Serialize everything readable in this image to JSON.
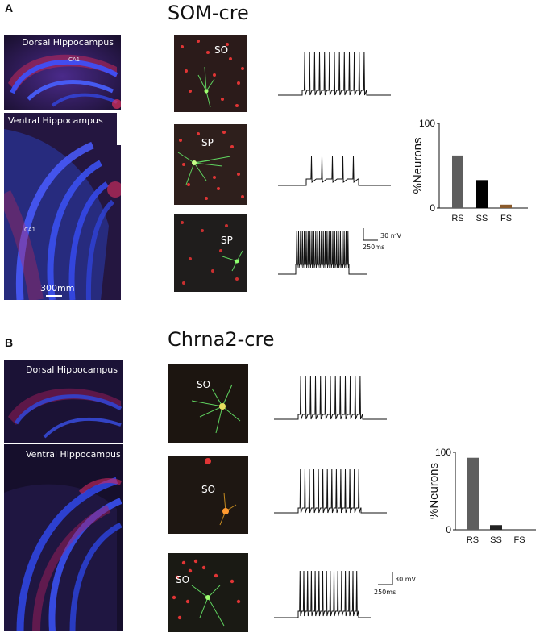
{
  "panel_a": {
    "letter": "A",
    "title": "SOM-cre",
    "dorsal_label": "Dorsal Hippocampus",
    "ca1_label_dorsal": "CA1",
    "ventral_label": "Ventral Hippocampus",
    "ca1_label_ventral": "CA1",
    "scale_label": "300mm",
    "cell_labels": [
      "SO",
      "SP",
      "SP"
    ],
    "scale_voltage": "30 mV",
    "scale_time": "250ms"
  },
  "panel_b": {
    "letter": "B",
    "title": "Chrna2-cre",
    "dorsal_label": "Dorsal Hippocampus",
    "ventral_label": "Ventral Hippocampus",
    "cell_labels": [
      "SO",
      "SO",
      "SO"
    ],
    "scale_voltage": "30 mV",
    "scale_time": "250ms"
  },
  "colors": {
    "tissue_blue": "#2f3fd0",
    "tissue_red": "#c2285a",
    "cell_green": "#5fd35f",
    "cell_red": "#e03535",
    "bar_rs": "#5e5e5e",
    "bar_ss": "#000000",
    "bar_fs": "#8a5a2b"
  },
  "chart_data": [
    {
      "type": "bar",
      "panel": "A",
      "categories": [
        "RS",
        "SS",
        "FS"
      ],
      "values": [
        62,
        33,
        4
      ],
      "colors": [
        "#5e5e5e",
        "#000000",
        "#8a5a2b"
      ],
      "ylabel": "%Neurons",
      "ylim": [
        0,
        100
      ],
      "yticks": [
        "0",
        "100"
      ]
    },
    {
      "type": "bar",
      "panel": "B",
      "categories": [
        "RS",
        "SS",
        "FS"
      ],
      "values": [
        93,
        6,
        0
      ],
      "colors": [
        "#5e5e5e",
        "#222222",
        "#8a5a2b"
      ],
      "ylabel": "%Neurons",
      "ylim": [
        0,
        100
      ],
      "yticks": [
        "0",
        "100"
      ]
    }
  ]
}
